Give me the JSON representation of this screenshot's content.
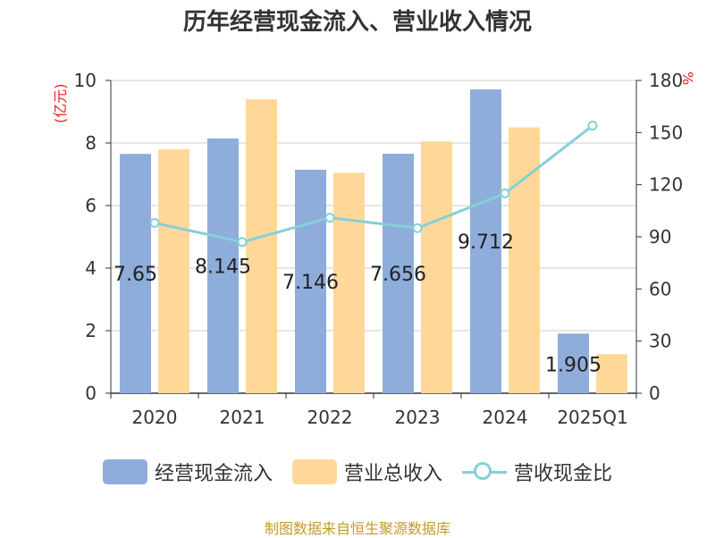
{
  "colors": {
    "cash_inflow": "#8eadda",
    "revenue": "#ffd899",
    "ratio": "#85d0d8",
    "unit_text": "#e8231a",
    "source_text": "#c49a28"
  },
  "chart_data": {
    "type": "bar",
    "title": "历年经营现金流入、营业收入情况",
    "categories": [
      "2020",
      "2021",
      "2022",
      "2023",
      "2024",
      "2025Q1"
    ],
    "series": [
      {
        "name": "经营现金流入",
        "type": "bar",
        "axis": "left",
        "values": [
          7.65,
          8.145,
          7.146,
          7.656,
          9.712,
          1.905
        ],
        "labels": [
          "7.65",
          "8.145",
          "7.146",
          "7.656",
          "9.712",
          "1.905"
        ]
      },
      {
        "name": "营业总收入",
        "type": "bar",
        "axis": "left",
        "values": [
          7.8,
          9.4,
          7.05,
          8.05,
          8.5,
          1.25
        ]
      },
      {
        "name": "营收现金比",
        "type": "line",
        "axis": "right",
        "values": [
          98,
          87,
          101,
          95,
          115,
          154
        ]
      }
    ],
    "y_left": {
      "unit": "(亿元)",
      "ylim": [
        0,
        10
      ],
      "ticks": [
        "0",
        "2",
        "4",
        "6",
        "8",
        "10"
      ]
    },
    "y_right": {
      "unit": "%",
      "ylim": [
        0,
        180
      ],
      "ticks": [
        "0",
        "30",
        "60",
        "90",
        "120",
        "150",
        "180"
      ]
    },
    "grid": true,
    "legend_position": "bottom"
  },
  "source": "制图数据来自恒生聚源数据库"
}
